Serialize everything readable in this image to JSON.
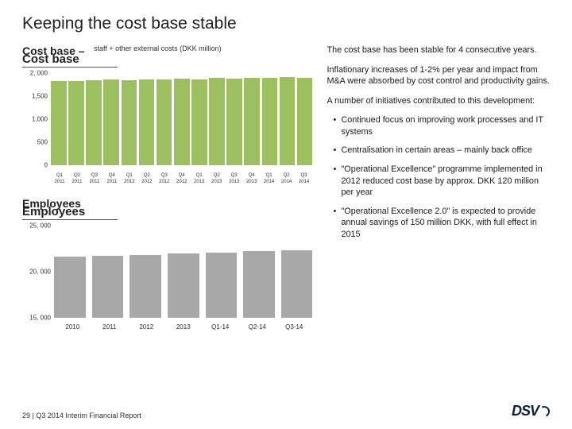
{
  "page": {
    "title": "Keeping the cost base stable",
    "footer": "29 | Q3 2014 Interim Financial Report",
    "logo_text": "DSV"
  },
  "chart1": {
    "title_top": "Cost base –",
    "subtitle": "staff + other external costs (DKK million)",
    "title_bottom": "Cost base",
    "ymin": 0,
    "ymax": 2000,
    "yticks": [
      {
        "v": 2000,
        "label": "2, 000"
      },
      {
        "v": 1500,
        "label": "1,500"
      },
      {
        "v": 1000,
        "label": "1,000"
      },
      {
        "v": 500,
        "label": "500"
      },
      {
        "v": 0,
        "label": "0"
      }
    ],
    "bar_color": "#9cbf60",
    "bars": [
      {
        "q": "Q1",
        "y": "2011",
        "v": 1820
      },
      {
        "q": "Q2",
        "y": "2011",
        "v": 1830
      },
      {
        "q": "Q3",
        "y": "2011",
        "v": 1840
      },
      {
        "q": "Q4",
        "y": "2011",
        "v": 1860
      },
      {
        "q": "Q1",
        "y": "2012",
        "v": 1850
      },
      {
        "q": "Q2",
        "y": "2012",
        "v": 1870
      },
      {
        "q": "Q3",
        "y": "2012",
        "v": 1860
      },
      {
        "q": "Q4",
        "y": "2012",
        "v": 1880
      },
      {
        "q": "Q1",
        "y": "2013",
        "v": 1870
      },
      {
        "q": "Q2",
        "y": "2013",
        "v": 1890
      },
      {
        "q": "Q3",
        "y": "2013",
        "v": 1880
      },
      {
        "q": "Q4",
        "y": "2013",
        "v": 1900
      },
      {
        "q": "Q1",
        "y": "2014",
        "v": 1890
      },
      {
        "q": "Q2",
        "y": "2014",
        "v": 1910
      },
      {
        "q": "Q3",
        "y": "2014",
        "v": 1900
      }
    ]
  },
  "chart2": {
    "title_top": "Employees",
    "title_bottom": "Employees",
    "ymin": 15000,
    "ymax": 25000,
    "yticks": [
      {
        "v": 25000,
        "label": "25, 000"
      },
      {
        "v": 20000,
        "label": "20, 000"
      },
      {
        "v": 15000,
        "label": "15, 000"
      }
    ],
    "bar_color": "#a8a8a8",
    "bars": [
      {
        "x": "2010",
        "v": 21600
      },
      {
        "x": "2011",
        "v": 21700
      },
      {
        "x": "2012",
        "v": 21800
      },
      {
        "x": "2013",
        "v": 22000
      },
      {
        "x": "Q1-14",
        "v": 22100
      },
      {
        "x": "Q2-14",
        "v": 22200
      },
      {
        "x": "Q3-14",
        "v": 22300
      }
    ]
  },
  "text": {
    "p1": "The cost base has been stable for 4 consecutive years.",
    "p2": "Inflationary increases of 1-2% per year and impact from M&A were absorbed by cost control and productivity gains.",
    "p3": "A number of initiatives contributed to this development:",
    "bullets": [
      "Continued focus on improving work processes and IT systems",
      "Centralisation in certain areas – mainly back office",
      "\"Operational Excellence\" programme implemented in 2012 reduced cost base by approx. DKK 120 million per year",
      "\"Operational Excellence 2.0\" is expected to provide annual savings of 150 million DKK, with full effect in 2015"
    ]
  }
}
